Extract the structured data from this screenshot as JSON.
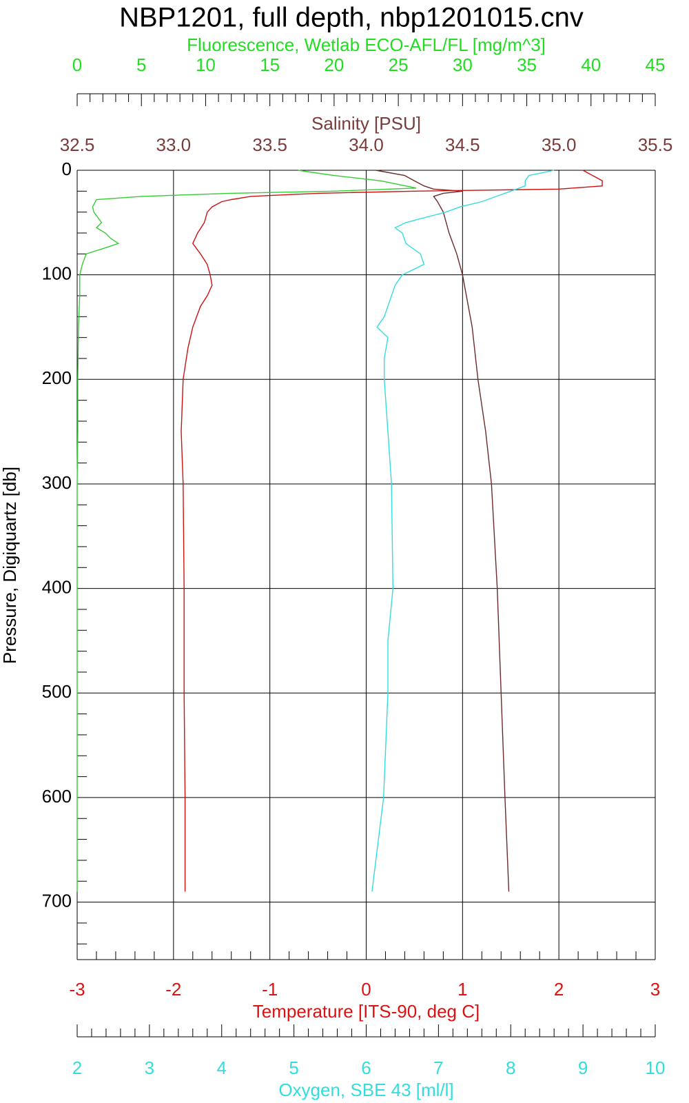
{
  "chart_data": {
    "type": "profile",
    "title": "NBP1201, full depth, nbp1201015.cnv",
    "y_label": "Pressure, Digiquartz [db]",
    "ylim": [
      0,
      755
    ],
    "yticks": [
      0,
      100,
      200,
      300,
      400,
      500,
      600,
      700
    ],
    "y_inverted": true,
    "grid": true,
    "minor_ticks_per_interval": 5,
    "x_axes": [
      {
        "label": "Fluorescence, Wetlab ECO-AFL/FL [mg/m^3]",
        "color": "#22dd22",
        "position": "top-outer",
        "lim": [
          0,
          45
        ],
        "ticks": [
          0,
          5,
          10,
          15,
          20,
          25,
          30,
          35,
          40,
          45
        ]
      },
      {
        "label": "Salinity [PSU]",
        "color": "#7a3b3b",
        "position": "top-inner",
        "lim": [
          32.5,
          35.5
        ],
        "ticks": [
          32.5,
          {
            "value": 33,
            "label": "33.0"
          },
          33.5,
          {
            "value": 34,
            "label": "34.0"
          },
          34.5,
          {
            "value": 35,
            "label": "35.0"
          },
          35.5
        ]
      },
      {
        "label": "Temperature [ITS-90, deg C]",
        "color": "#dd1111",
        "position": "bottom-inner",
        "lim": [
          -3,
          3
        ],
        "ticks": [
          -3,
          -2,
          -1,
          0,
          1,
          2,
          3
        ]
      },
      {
        "label": "Oxygen, SBE 43 [ml/l]",
        "color": "#33dddd",
        "position": "bottom-outer",
        "lim": [
          2,
          10
        ],
        "ticks": [
          2,
          3,
          4,
          5,
          6,
          7,
          8,
          9,
          10
        ]
      }
    ],
    "series": [
      {
        "x_axis": 0,
        "color": "#33cc33",
        "y": [
          0,
          5,
          10,
          17,
          20,
          22,
          25,
          28,
          35,
          40,
          50,
          55,
          60,
          65,
          70,
          75,
          80,
          90,
          100,
          120,
          150,
          200,
          250,
          300,
          400,
          500,
          600,
          690
        ],
        "values": [
          17.2,
          20,
          23.6,
          26.4,
          20,
          11.9,
          5,
          1.5,
          1.2,
          1.3,
          1.9,
          1.5,
          2.2,
          2.6,
          3.2,
          2.0,
          0.7,
          0.4,
          0.2,
          0.2,
          0.1,
          0.05,
          0.05,
          0,
          0,
          0,
          0,
          0
        ]
      },
      {
        "x_axis": 1,
        "color": "#6b2a2a",
        "y": [
          0,
          5,
          10,
          15,
          18,
          20,
          22,
          25,
          30,
          40,
          60,
          80,
          100,
          150,
          200,
          250,
          300,
          400,
          500,
          600,
          690
        ],
        "values": [
          34.05,
          34.2,
          34.25,
          34.3,
          34.35,
          34.5,
          34.4,
          34.35,
          34.37,
          34.4,
          34.43,
          34.47,
          34.5,
          34.55,
          34.58,
          34.62,
          34.65,
          34.68,
          34.7,
          34.72,
          34.74
        ]
      },
      {
        "x_axis": 2,
        "color": "#cc1111",
        "y": [
          0,
          5,
          10,
          15,
          18,
          20,
          22,
          25,
          28,
          30,
          35,
          40,
          50,
          60,
          70,
          80,
          90,
          100,
          110,
          120,
          130,
          150,
          170,
          200,
          250,
          300,
          400,
          500,
          600,
          690
        ],
        "values": [
          2.25,
          2.35,
          2.45,
          2.45,
          2.0,
          0.5,
          -0.5,
          -1.2,
          -1.4,
          -1.5,
          -1.6,
          -1.65,
          -1.68,
          -1.75,
          -1.8,
          -1.72,
          -1.65,
          -1.62,
          -1.6,
          -1.65,
          -1.72,
          -1.8,
          -1.85,
          -1.9,
          -1.92,
          -1.9,
          -1.89,
          -1.89,
          -1.88,
          -1.88
        ]
      },
      {
        "x_axis": 3,
        "color": "#33dddd",
        "y": [
          0,
          5,
          10,
          15,
          20,
          25,
          30,
          35,
          40,
          50,
          55,
          60,
          70,
          80,
          90,
          100,
          110,
          120,
          130,
          140,
          150,
          160,
          180,
          200,
          250,
          300,
          400,
          450,
          500,
          600,
          690
        ],
        "values": [
          8.6,
          8.25,
          8.2,
          8.2,
          8.0,
          7.8,
          7.6,
          7.3,
          7.1,
          6.55,
          6.4,
          6.5,
          6.55,
          6.75,
          6.8,
          6.5,
          6.4,
          6.35,
          6.3,
          6.25,
          6.15,
          6.3,
          6.25,
          6.25,
          6.3,
          6.35,
          6.37,
          6.3,
          6.3,
          6.24,
          6.08
        ]
      }
    ]
  }
}
